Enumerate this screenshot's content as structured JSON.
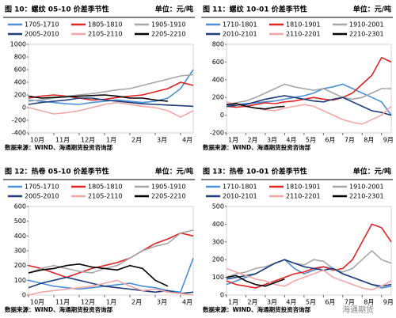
{
  "chart_data": [
    {
      "type": "line",
      "title": "图 10：螺纹 05-10 价差季节性",
      "unit": "单位：元/吨",
      "source": "数据来源：WIND、海通期货投资咨询部",
      "categories": [
        "10月",
        null,
        "11月",
        null,
        "12月",
        null,
        "1月",
        null,
        "2月",
        null,
        "3月",
        null,
        "4月",
        null
      ],
      "ylim": [
        -400,
        1000
      ],
      "yticks": [
        -400,
        -200,
        0,
        200,
        400,
        600,
        800,
        1000
      ],
      "series": [
        {
          "name": "1705-1710",
          "color": "#4a8fd8",
          "values": [
            120,
            100,
            80,
            60,
            50,
            80,
            100,
            120,
            100,
            80,
            100,
            150,
            300,
            600
          ]
        },
        {
          "name": "1805-1810",
          "color": "#e32222",
          "values": [
            150,
            180,
            200,
            180,
            150,
            120,
            130,
            160,
            180,
            200,
            250,
            300,
            400,
            350
          ]
        },
        {
          "name": "1905-1910",
          "color": "#a6a6a6",
          "values": [
            100,
            120,
            150,
            180,
            200,
            220,
            250,
            280,
            300,
            350,
            400,
            450,
            500,
            520
          ]
        },
        {
          "name": "2005-2010",
          "color": "#1f3d7a",
          "values": [
            50,
            80,
            100,
            120,
            150,
            150,
            120,
            100,
            80,
            60,
            50,
            40,
            30,
            20
          ]
        },
        {
          "name": "2105-2110",
          "color": "#f4a6a6",
          "values": [
            0,
            -50,
            -100,
            -80,
            -50,
            0,
            50,
            80,
            50,
            20,
            0,
            -50,
            -150,
            -50
          ]
        },
        {
          "name": "2205-2210",
          "color": "#000000",
          "values": [
            180,
            150,
            160,
            170,
            180,
            190,
            200,
            180,
            150,
            150,
            120,
            100,
            null,
            null
          ]
        }
      ]
    },
    {
      "type": "line",
      "title": "图 11：螺纹 10-01 价差季节性",
      "unit": "单位：元/吨",
      "source": "数据来源：WIND、海通期货投资咨询部",
      "categories": [
        "1月",
        null,
        "2月",
        null,
        "3月",
        null,
        "4月",
        null,
        "5月",
        null,
        "6月",
        null,
        "7月",
        null,
        "8月",
        null,
        "9月",
        null
      ],
      "ylim": [
        -200,
        800
      ],
      "yticks": [
        -200,
        0,
        200,
        400,
        600,
        800
      ],
      "series": [
        {
          "name": "1710-1801",
          "color": "#4a8fd8",
          "values": [
            100,
            120,
            130,
            140,
            150,
            160,
            180,
            200,
            220,
            250,
            300,
            320,
            350,
            300,
            250,
            200,
            150,
            0
          ]
        },
        {
          "name": "1810-1901",
          "color": "#e32222",
          "values": [
            100,
            90,
            100,
            120,
            140,
            130,
            150,
            160,
            180,
            200,
            180,
            170,
            200,
            250,
            350,
            450,
            650,
            600
          ]
        },
        {
          "name": "1910-2001",
          "color": "#a6a6a6",
          "values": [
            120,
            140,
            160,
            200,
            250,
            300,
            350,
            320,
            300,
            280,
            300,
            250,
            200,
            180,
            200,
            250,
            300,
            300
          ]
        },
        {
          "name": "2010-2101",
          "color": "#1f3d7a",
          "values": [
            100,
            110,
            120,
            150,
            180,
            200,
            220,
            200,
            180,
            160,
            150,
            180,
            200,
            150,
            100,
            50,
            30,
            0
          ]
        },
        {
          "name": "2110-2201",
          "color": "#f4a6a6",
          "values": [
            150,
            120,
            100,
            80,
            60,
            50,
            80,
            100,
            120,
            100,
            50,
            0,
            -50,
            -80,
            -100,
            -50,
            0,
            100
          ]
        },
        {
          "name": "2210-2301",
          "color": "#000000",
          "values": [
            120,
            130,
            100,
            80,
            70,
            90,
            100,
            null,
            null,
            null,
            null,
            null,
            null,
            null,
            null,
            null,
            null,
            null
          ]
        }
      ]
    },
    {
      "type": "line",
      "title": "图 12：热卷 05-10 价差季节性",
      "unit": "单位：元/吨",
      "source": "数据来源：WIND、海通期货投资咨询部",
      "categories": [
        "10月",
        null,
        "11月",
        null,
        "12月",
        null,
        "1月",
        null,
        "2月",
        null,
        "3月",
        null,
        "4月",
        null
      ],
      "ylim": [
        0,
        600
      ],
      "yticks": [
        0,
        100,
        200,
        300,
        400,
        500,
        600
      ],
      "series": [
        {
          "name": "1705-1710",
          "color": "#4a8fd8",
          "values": [
            100,
            80,
            60,
            50,
            40,
            50,
            60,
            70,
            80,
            60,
            50,
            30,
            20,
            250
          ]
        },
        {
          "name": "1805-1810",
          "color": "#e32222",
          "values": [
            200,
            180,
            150,
            120,
            150,
            180,
            200,
            220,
            250,
            300,
            350,
            380,
            420,
            400
          ]
        },
        {
          "name": "1905-1910",
          "color": "#a6a6a6",
          "values": [
            150,
            180,
            200,
            180,
            160,
            150,
            180,
            200,
            250,
            300,
            330,
            350,
            420,
            440
          ]
        },
        {
          "name": "2005-2010",
          "color": "#1f3d7a",
          "values": [
            50,
            80,
            100,
            120,
            100,
            80,
            60,
            50,
            40,
            30,
            20,
            30,
            10,
            20
          ]
        },
        {
          "name": "2105-2110",
          "color": "#f4a6a6",
          "values": [
            0,
            20,
            30,
            40,
            50,
            60,
            80,
            100,
            60,
            30,
            40,
            20,
            10,
            0
          ]
        },
        {
          "name": "2205-2210",
          "color": "#000000",
          "values": [
            150,
            170,
            180,
            200,
            210,
            190,
            180,
            170,
            200,
            180,
            100,
            60,
            null,
            null
          ]
        }
      ]
    },
    {
      "type": "line",
      "title": "图 13：热卷 10-01 价差季节性",
      "unit": "单位：元/吨",
      "source": "数据来源：WIND、海通期货投资咨询部",
      "categories": [
        "1月",
        null,
        "2月",
        null,
        "3月",
        null,
        "4月",
        null,
        "5月",
        null,
        "6月",
        null,
        "7月",
        null,
        "8月",
        null,
        "9月",
        null
      ],
      "ylim": [
        0,
        500
      ],
      "yticks": [
        0,
        100,
        200,
        300,
        400,
        500
      ],
      "series": [
        {
          "name": "1710-1801",
          "color": "#4a8fd8",
          "values": [
            60,
            80,
            100,
            120,
            150,
            180,
            200,
            150,
            120,
            140,
            160,
            150,
            120,
            100,
            80,
            60,
            40,
            50
          ]
        },
        {
          "name": "1810-1901",
          "color": "#e32222",
          "values": [
            80,
            60,
            50,
            40,
            60,
            80,
            100,
            120,
            130,
            150,
            160,
            140,
            150,
            200,
            300,
            400,
            380,
            300
          ]
        },
        {
          "name": "1910-2001",
          "color": "#a6a6a6",
          "values": [
            100,
            120,
            130,
            150,
            160,
            180,
            200,
            180,
            170,
            200,
            190,
            150,
            130,
            150,
            200,
            250,
            200,
            180
          ]
        },
        {
          "name": "2010-2101",
          "color": "#1f3d7a",
          "values": [
            90,
            100,
            110,
            120,
            150,
            180,
            200,
            180,
            160,
            150,
            140,
            150,
            120,
            100,
            80,
            60,
            50,
            60
          ]
        },
        {
          "name": "2110-2201",
          "color": "#f4a6a6",
          "values": [
            150,
            130,
            110,
            90,
            80,
            60,
            50,
            80,
            100,
            120,
            140,
            100,
            80,
            60,
            40,
            30,
            50,
            80
          ]
        },
        {
          "name": "2210-2301",
          "color": "#000000",
          "values": [
            100,
            110,
            80,
            60,
            50,
            70,
            90,
            null,
            null,
            null,
            null,
            null,
            null,
            null,
            null,
            null,
            null,
            null
          ]
        }
      ]
    }
  ],
  "watermark": "海通期货"
}
